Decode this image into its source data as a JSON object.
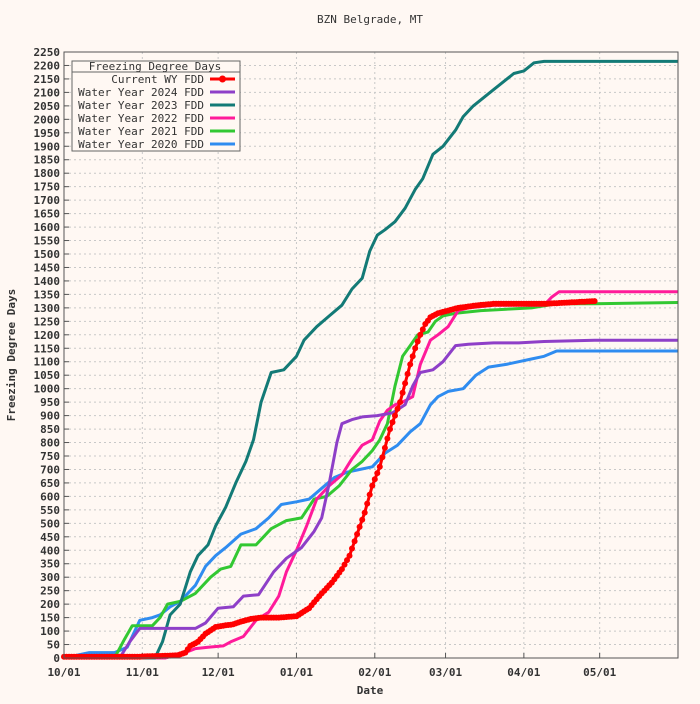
{
  "chart_data": {
    "type": "line",
    "title": "BZN Belgrade, MT",
    "xlabel": "Date",
    "ylabel": "Freezing Degree Days",
    "ylim": [
      0,
      2250
    ],
    "y_ticks": [
      0,
      50,
      100,
      150,
      200,
      250,
      300,
      350,
      400,
      450,
      500,
      550,
      600,
      650,
      700,
      750,
      800,
      850,
      900,
      950,
      1000,
      1050,
      1100,
      1150,
      1200,
      1250,
      1300,
      1350,
      1400,
      1450,
      1500,
      1550,
      1600,
      1650,
      1700,
      1750,
      1800,
      1850,
      1900,
      1950,
      2000,
      2050,
      2100,
      2150,
      2200,
      2250
    ],
    "x_day_range": [
      0,
      243
    ],
    "x_ticks": [
      {
        "label": "10/01",
        "day": 0
      },
      {
        "label": "11/01",
        "day": 31
      },
      {
        "label": "12/01",
        "day": 61
      },
      {
        "label": "01/01",
        "day": 92
      },
      {
        "label": "02/01",
        "day": 123
      },
      {
        "label": "03/01",
        "day": 151
      },
      {
        "label": "04/01",
        "day": 182
      },
      {
        "label": "05/01",
        "day": 212
      }
    ],
    "grid": true,
    "legend": {
      "title": "Freezing Degree Days",
      "placement": "top-left"
    },
    "series": [
      {
        "name": "Current WY FDD",
        "color": "#ff0000",
        "markers": true,
        "points": [
          [
            0,
            5
          ],
          [
            20,
            5
          ],
          [
            30,
            5
          ],
          [
            35,
            7
          ],
          [
            40,
            8
          ],
          [
            45,
            10
          ],
          [
            48,
            20
          ],
          [
            50,
            45
          ],
          [
            53,
            60
          ],
          [
            56,
            90
          ],
          [
            60,
            115
          ],
          [
            63,
            120
          ],
          [
            67,
            125
          ],
          [
            70,
            135
          ],
          [
            74,
            145
          ],
          [
            78,
            150
          ],
          [
            85,
            150
          ],
          [
            92,
            155
          ],
          [
            97,
            185
          ],
          [
            102,
            240
          ],
          [
            106,
            280
          ],
          [
            110,
            330
          ],
          [
            113,
            380
          ],
          [
            116,
            460
          ],
          [
            119,
            540
          ],
          [
            122,
            640
          ],
          [
            125,
            710
          ],
          [
            127,
            780
          ],
          [
            129,
            850
          ],
          [
            131,
            900
          ],
          [
            133,
            950
          ],
          [
            135,
            1020
          ],
          [
            137,
            1090
          ],
          [
            139,
            1150
          ],
          [
            141,
            1200
          ],
          [
            143,
            1240
          ],
          [
            145,
            1265
          ],
          [
            148,
            1280
          ],
          [
            152,
            1290
          ],
          [
            156,
            1300
          ],
          [
            160,
            1305
          ],
          [
            164,
            1310
          ],
          [
            170,
            1315
          ],
          [
            180,
            1315
          ],
          [
            190,
            1315
          ],
          [
            200,
            1320
          ],
          [
            210,
            1325
          ]
        ]
      },
      {
        "name": "Water Year 2024 FDD",
        "color": "#8e3fc8",
        "markers": false,
        "points": [
          [
            0,
            0
          ],
          [
            22,
            0
          ],
          [
            26,
            60
          ],
          [
            30,
            110
          ],
          [
            40,
            110
          ],
          [
            52,
            110
          ],
          [
            56,
            130
          ],
          [
            61,
            185
          ],
          [
            67,
            190
          ],
          [
            71,
            230
          ],
          [
            77,
            235
          ],
          [
            83,
            320
          ],
          [
            88,
            370
          ],
          [
            94,
            410
          ],
          [
            99,
            470
          ],
          [
            102,
            520
          ],
          [
            105,
            650
          ],
          [
            108,
            800
          ],
          [
            110,
            870
          ],
          [
            114,
            885
          ],
          [
            118,
            895
          ],
          [
            124,
            900
          ],
          [
            130,
            910
          ],
          [
            135,
            940
          ],
          [
            138,
            1010
          ],
          [
            141,
            1060
          ],
          [
            146,
            1070
          ],
          [
            150,
            1100
          ],
          [
            155,
            1160
          ],
          [
            160,
            1165
          ],
          [
            170,
            1170
          ],
          [
            180,
            1170
          ],
          [
            190,
            1175
          ],
          [
            210,
            1180
          ],
          [
            243,
            1180
          ]
        ]
      },
      {
        "name": "Water Year 2023 FDD",
        "color": "#137a76",
        "markers": false,
        "points": [
          [
            0,
            0
          ],
          [
            36,
            0
          ],
          [
            39,
            60
          ],
          [
            42,
            160
          ],
          [
            46,
            200
          ],
          [
            50,
            320
          ],
          [
            53,
            380
          ],
          [
            57,
            420
          ],
          [
            60,
            490
          ],
          [
            64,
            560
          ],
          [
            68,
            650
          ],
          [
            72,
            730
          ],
          [
            75,
            810
          ],
          [
            78,
            950
          ],
          [
            82,
            1060
          ],
          [
            87,
            1070
          ],
          [
            92,
            1120
          ],
          [
            95,
            1180
          ],
          [
            100,
            1230
          ],
          [
            105,
            1270
          ],
          [
            110,
            1310
          ],
          [
            114,
            1370
          ],
          [
            118,
            1410
          ],
          [
            121,
            1510
          ],
          [
            124,
            1570
          ],
          [
            127,
            1590
          ],
          [
            131,
            1620
          ],
          [
            135,
            1670
          ],
          [
            139,
            1740
          ],
          [
            142,
            1780
          ],
          [
            146,
            1870
          ],
          [
            150,
            1900
          ],
          [
            155,
            1960
          ],
          [
            158,
            2010
          ],
          [
            162,
            2050
          ],
          [
            166,
            2080
          ],
          [
            170,
            2110
          ],
          [
            174,
            2140
          ],
          [
            178,
            2170
          ],
          [
            182,
            2180
          ],
          [
            186,
            2210
          ],
          [
            190,
            2215
          ],
          [
            200,
            2215
          ],
          [
            220,
            2215
          ],
          [
            243,
            2215
          ]
        ]
      },
      {
        "name": "Water Year 2022 FDD",
        "color": "#ff1a9a",
        "markers": false,
        "points": [
          [
            0,
            0
          ],
          [
            40,
            0
          ],
          [
            44,
            10
          ],
          [
            48,
            20
          ],
          [
            52,
            35
          ],
          [
            57,
            40
          ],
          [
            63,
            45
          ],
          [
            66,
            60
          ],
          [
            71,
            80
          ],
          [
            76,
            140
          ],
          [
            81,
            170
          ],
          [
            85,
            230
          ],
          [
            88,
            320
          ],
          [
            92,
            400
          ],
          [
            96,
            490
          ],
          [
            100,
            590
          ],
          [
            105,
            640
          ],
          [
            110,
            680
          ],
          [
            114,
            740
          ],
          [
            118,
            790
          ],
          [
            122,
            810
          ],
          [
            125,
            880
          ],
          [
            128,
            920
          ],
          [
            131,
            940
          ],
          [
            134,
            950
          ],
          [
            138,
            970
          ],
          [
            141,
            1090
          ],
          [
            145,
            1180
          ],
          [
            148,
            1200
          ],
          [
            152,
            1230
          ],
          [
            156,
            1290
          ],
          [
            160,
            1300
          ],
          [
            170,
            1310
          ],
          [
            180,
            1310
          ],
          [
            190,
            1310
          ],
          [
            193,
            1340
          ],
          [
            196,
            1360
          ],
          [
            210,
            1360
          ],
          [
            243,
            1360
          ]
        ]
      },
      {
        "name": "Water Year 2021 FDD",
        "color": "#32c832",
        "markers": false,
        "points": [
          [
            0,
            0
          ],
          [
            20,
            0
          ],
          [
            24,
            70
          ],
          [
            27,
            120
          ],
          [
            35,
            120
          ],
          [
            38,
            150
          ],
          [
            41,
            200
          ],
          [
            46,
            210
          ],
          [
            52,
            240
          ],
          [
            58,
            300
          ],
          [
            62,
            330
          ],
          [
            66,
            340
          ],
          [
            70,
            420
          ],
          [
            76,
            420
          ],
          [
            82,
            480
          ],
          [
            88,
            510
          ],
          [
            94,
            520
          ],
          [
            99,
            590
          ],
          [
            104,
            600
          ],
          [
            109,
            640
          ],
          [
            114,
            700
          ],
          [
            118,
            730
          ],
          [
            122,
            770
          ],
          [
            125,
            810
          ],
          [
            128,
            870
          ],
          [
            131,
            1010
          ],
          [
            134,
            1120
          ],
          [
            137,
            1160
          ],
          [
            140,
            1200
          ],
          [
            144,
            1210
          ],
          [
            147,
            1250
          ],
          [
            150,
            1270
          ],
          [
            155,
            1280
          ],
          [
            165,
            1290
          ],
          [
            175,
            1295
          ],
          [
            185,
            1300
          ],
          [
            195,
            1315
          ],
          [
            210,
            1315
          ],
          [
            243,
            1320
          ]
        ]
      },
      {
        "name": "Water Year 2020 FDD",
        "color": "#2f8cf0",
        "markers": false,
        "points": [
          [
            0,
            0
          ],
          [
            10,
            20
          ],
          [
            20,
            20
          ],
          [
            25,
            40
          ],
          [
            30,
            140
          ],
          [
            35,
            150
          ],
          [
            38,
            160
          ],
          [
            42,
            190
          ],
          [
            46,
            210
          ],
          [
            52,
            270
          ],
          [
            56,
            340
          ],
          [
            60,
            380
          ],
          [
            64,
            410
          ],
          [
            70,
            460
          ],
          [
            76,
            480
          ],
          [
            81,
            520
          ],
          [
            86,
            570
          ],
          [
            92,
            580
          ],
          [
            97,
            590
          ],
          [
            102,
            630
          ],
          [
            107,
            670
          ],
          [
            112,
            690
          ],
          [
            117,
            700
          ],
          [
            122,
            710
          ],
          [
            127,
            760
          ],
          [
            132,
            790
          ],
          [
            137,
            840
          ],
          [
            141,
            870
          ],
          [
            145,
            940
          ],
          [
            148,
            970
          ],
          [
            152,
            990
          ],
          [
            158,
            1000
          ],
          [
            163,
            1050
          ],
          [
            168,
            1080
          ],
          [
            175,
            1090
          ],
          [
            180,
            1100
          ],
          [
            185,
            1110
          ],
          [
            190,
            1120
          ],
          [
            195,
            1140
          ],
          [
            210,
            1140
          ],
          [
            243,
            1140
          ]
        ]
      }
    ]
  }
}
